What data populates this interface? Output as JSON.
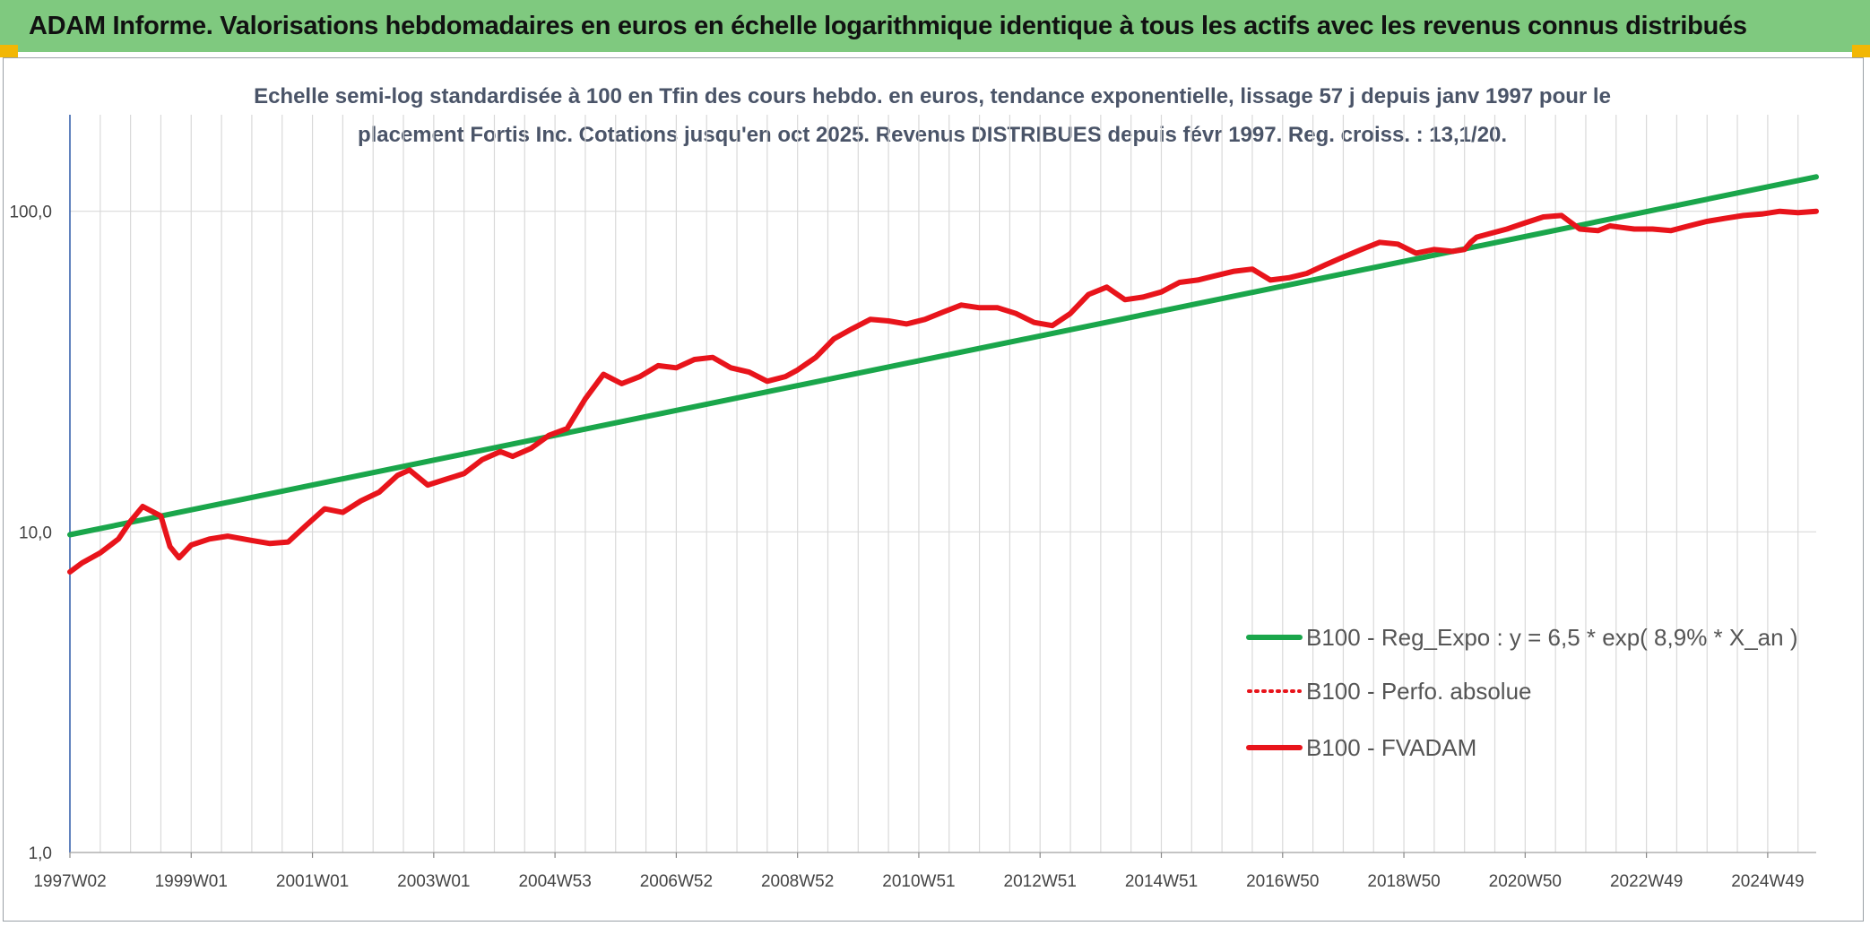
{
  "header": {
    "title": "ADAM Informe. Valorisations hebdomadaires en euros en échelle logarithmique identique à tous les actifs avec les revenus connus distribués"
  },
  "colors": {
    "header_bg": "#7fc97f",
    "corner_accent": "#f2b705",
    "trend": "#1aa64b",
    "series": "#e8141b",
    "grid": "#d9d9d9",
    "axis": "#2e5aa8"
  },
  "chart_data": {
    "type": "line",
    "title_line1": "Echelle semi-log standardisée à 100 en Tfin des cours hebdo. en euros, tendance exponentielle, lissage 57 j depuis janv 1997 pour le",
    "title_line2": "placement Fortis Inc. Cotations jusqu'en oct 2025. Revenus DISTRIBUES depuis févr 1997. Reg. croiss. : 13,1/20.",
    "y_scale": "log",
    "ylim": [
      1,
      200
    ],
    "y_ticks": [
      {
        "value": 1,
        "label": "1,0"
      },
      {
        "value": 10,
        "label": "10,0"
      },
      {
        "value": 100,
        "label": "100,0"
      }
    ],
    "x_range": [
      1997.0,
      2025.8
    ],
    "x_ticks": [
      {
        "x": 1997.0,
        "label": "1997W02"
      },
      {
        "x": 1999.0,
        "label": "1999W01"
      },
      {
        "x": 2001.0,
        "label": "2001W01"
      },
      {
        "x": 2003.0,
        "label": "2003W01"
      },
      {
        "x": 2005.0,
        "label": "2004W53"
      },
      {
        "x": 2007.0,
        "label": "2006W52"
      },
      {
        "x": 2009.0,
        "label": "2008W52"
      },
      {
        "x": 2011.0,
        "label": "2010W51"
      },
      {
        "x": 2013.0,
        "label": "2012W51"
      },
      {
        "x": 2015.0,
        "label": "2014W51"
      },
      {
        "x": 2017.0,
        "label": "2016W50"
      },
      {
        "x": 2019.0,
        "label": "2018W50"
      },
      {
        "x": 2021.0,
        "label": "2020W50"
      },
      {
        "x": 2023.0,
        "label": "2022W49"
      },
      {
        "x": 2025.0,
        "label": "2024W49"
      }
    ],
    "grid": true,
    "legend_position": "bottom-right",
    "series": [
      {
        "name": "B100 - Reg_Expo : y = 6,5 * exp( 8,9% *  X_an )",
        "style": "solid",
        "color": "#1aa64b",
        "x": [
          1997.0,
          2025.8
        ],
        "y": [
          9.8,
          128
        ]
      },
      {
        "name": "B100 - Perfo. absolue",
        "style": "dotted",
        "color": "#e8141b",
        "x": [],
        "y": []
      },
      {
        "name": "B100 - FVADAM",
        "style": "solid",
        "color": "#e8141b",
        "x": [
          1997.0,
          1997.2,
          1997.5,
          1997.8,
          1998.0,
          1998.2,
          1998.5,
          1998.65,
          1998.8,
          1999.0,
          1999.3,
          1999.6,
          2000.0,
          2000.3,
          2000.6,
          2000.9,
          2001.2,
          2001.5,
          2001.8,
          2002.1,
          2002.4,
          2002.6,
          2002.9,
          2003.2,
          2003.5,
          2003.8,
          2004.1,
          2004.3,
          2004.6,
          2004.9,
          2005.2,
          2005.5,
          2005.8,
          2006.1,
          2006.4,
          2006.7,
          2007.0,
          2007.3,
          2007.6,
          2007.9,
          2008.2,
          2008.5,
          2008.8,
          2009.0,
          2009.3,
          2009.6,
          2009.9,
          2010.2,
          2010.5,
          2010.8,
          2011.1,
          2011.4,
          2011.7,
          2012.0,
          2012.3,
          2012.6,
          2012.9,
          2013.2,
          2013.5,
          2013.8,
          2014.1,
          2014.4,
          2014.7,
          2015.0,
          2015.3,
          2015.6,
          2015.9,
          2016.2,
          2016.5,
          2016.8,
          2017.1,
          2017.4,
          2017.7,
          2018.0,
          2018.3,
          2018.6,
          2018.9,
          2019.2,
          2019.5,
          2019.8,
          2020.0,
          2020.1,
          2020.2,
          2020.4,
          2020.7,
          2021.0,
          2021.3,
          2021.6,
          2021.9,
          2022.2,
          2022.4,
          2022.6,
          2022.8,
          2023.1,
          2023.4,
          2023.7,
          2024.0,
          2024.3,
          2024.6,
          2024.9,
          2025.2,
          2025.5,
          2025.8
        ],
        "y": [
          7.5,
          8.0,
          8.6,
          9.5,
          10.8,
          12.0,
          11.2,
          9.0,
          8.3,
          9.1,
          9.5,
          9.7,
          9.4,
          9.2,
          9.3,
          10.5,
          11.8,
          11.5,
          12.5,
          13.3,
          15.0,
          15.6,
          14.0,
          14.6,
          15.2,
          16.8,
          17.8,
          17.2,
          18.2,
          20.0,
          21.0,
          26.0,
          31.0,
          29.0,
          30.5,
          33.0,
          32.5,
          34.5,
          35.0,
          32.5,
          31.5,
          29.5,
          30.5,
          32.0,
          35.0,
          40.0,
          43.0,
          46.0,
          45.5,
          44.5,
          46.0,
          48.5,
          51.0,
          50.0,
          50.0,
          48.0,
          45.0,
          44.0,
          48.0,
          55.0,
          58.0,
          53.0,
          54.0,
          56.0,
          60.0,
          61.0,
          63.0,
          65.0,
          66.0,
          61.0,
          62.0,
          64.0,
          68.0,
          72.0,
          76.0,
          80.0,
          79.0,
          74.0,
          76.0,
          75.0,
          76.0,
          80.0,
          83.0,
          85.0,
          88.0,
          92.0,
          96.0,
          97.0,
          88.0,
          87.0,
          90.0,
          89.0,
          88.0,
          88.0,
          87.0,
          90.0,
          93.0,
          95.0,
          97.0,
          98.0,
          100.0,
          99.0,
          100.0
        ]
      }
    ]
  }
}
